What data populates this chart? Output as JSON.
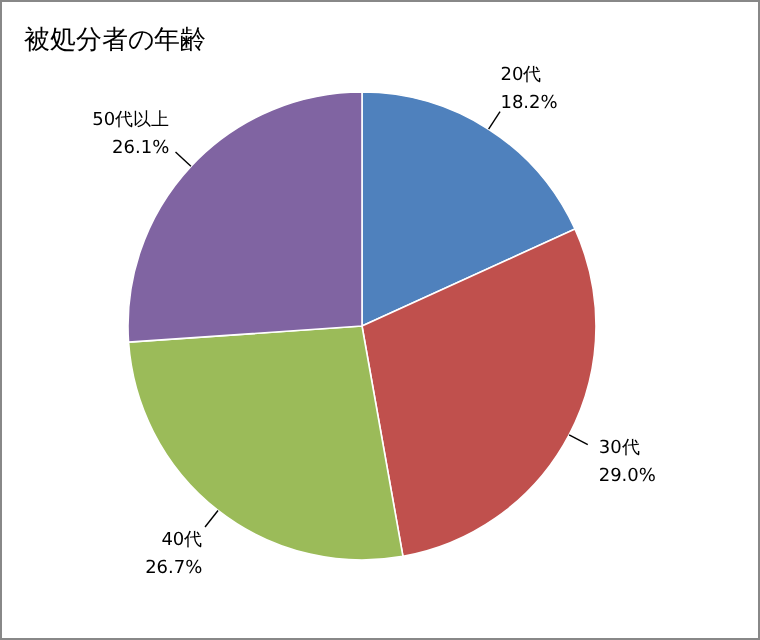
{
  "chart_data": {
    "type": "pie",
    "title": "被処分者の年齢",
    "categories": [
      "20代",
      "30代",
      "40代",
      "50代以上"
    ],
    "values": [
      18.2,
      29.0,
      26.7,
      26.1
    ],
    "colors": [
      "#4f81bd",
      "#c0504d",
      "#9bbb59",
      "#8064a2"
    ],
    "value_labels": [
      "18.2%",
      "29.0%",
      "26.7%",
      "26.1%"
    ]
  }
}
